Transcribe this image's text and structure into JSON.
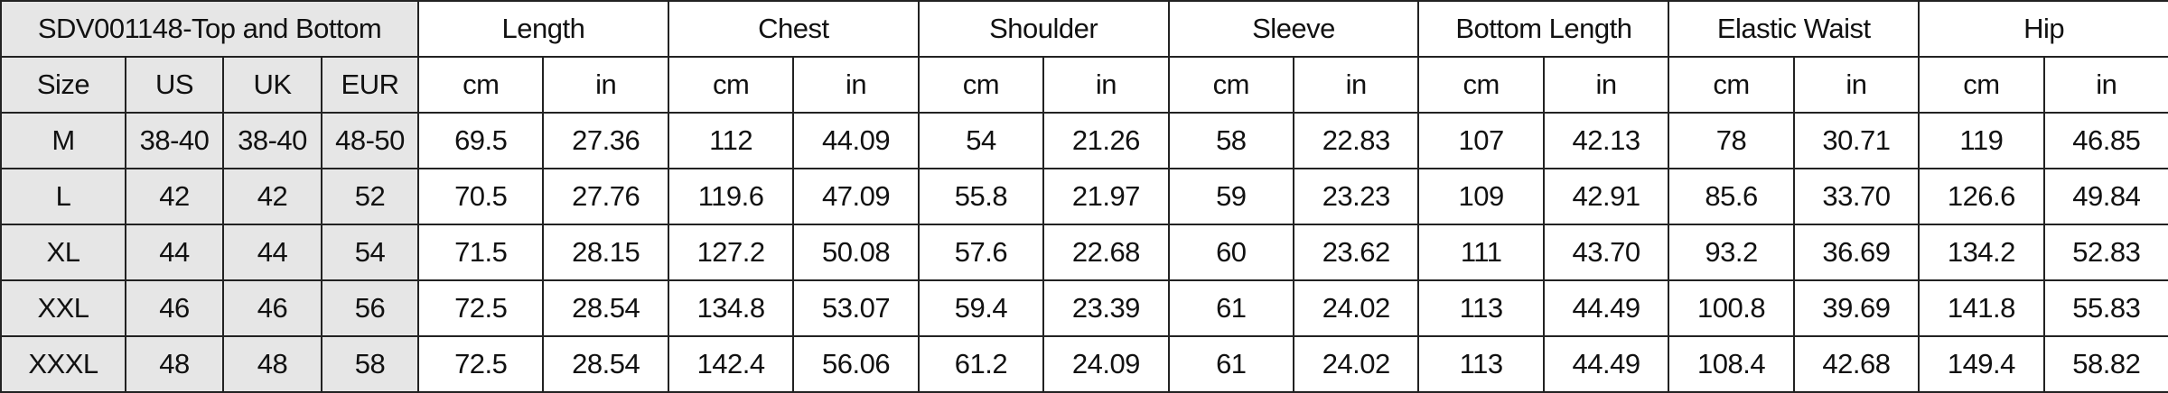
{
  "title": "SDV001148-Top and Bottom",
  "size_headers": [
    "Size",
    "US",
    "UK",
    "EUR"
  ],
  "groups": [
    "Length",
    "Chest",
    "Shoulder",
    "Sleeve",
    "Bottom Length",
    "Elastic Waist",
    "Hip"
  ],
  "units": [
    "cm",
    "in"
  ],
  "rows": [
    {
      "size": "M",
      "us": "38-40",
      "uk": "38-40",
      "eur": "48-50",
      "values": [
        "69.5",
        "27.36",
        "112",
        "44.09",
        "54",
        "21.26",
        "58",
        "22.83",
        "107",
        "42.13",
        "78",
        "30.71",
        "119",
        "46.85"
      ]
    },
    {
      "size": "L",
      "us": "42",
      "uk": "42",
      "eur": "52",
      "values": [
        "70.5",
        "27.76",
        "119.6",
        "47.09",
        "55.8",
        "21.97",
        "59",
        "23.23",
        "109",
        "42.91",
        "85.6",
        "33.70",
        "126.6",
        "49.84"
      ]
    },
    {
      "size": "XL",
      "us": "44",
      "uk": "44",
      "eur": "54",
      "values": [
        "71.5",
        "28.15",
        "127.2",
        "50.08",
        "57.6",
        "22.68",
        "60",
        "23.62",
        "111",
        "43.70",
        "93.2",
        "36.69",
        "134.2",
        "52.83"
      ]
    },
    {
      "size": "XXL",
      "us": "46",
      "uk": "46",
      "eur": "56",
      "values": [
        "72.5",
        "28.54",
        "134.8",
        "53.07",
        "59.4",
        "23.39",
        "61",
        "24.02",
        "113",
        "44.49",
        "100.8",
        "39.69",
        "141.8",
        "55.83"
      ]
    },
    {
      "size": "XXXL",
      "us": "48",
      "uk": "48",
      "eur": "58",
      "values": [
        "72.5",
        "28.54",
        "142.4",
        "56.06",
        "61.2",
        "24.09",
        "61",
        "24.02",
        "113",
        "44.49",
        "108.4",
        "42.68",
        "149.4",
        "58.82"
      ]
    }
  ],
  "colors": {
    "header_fill": "#e6e6e6",
    "border": "#222222"
  }
}
